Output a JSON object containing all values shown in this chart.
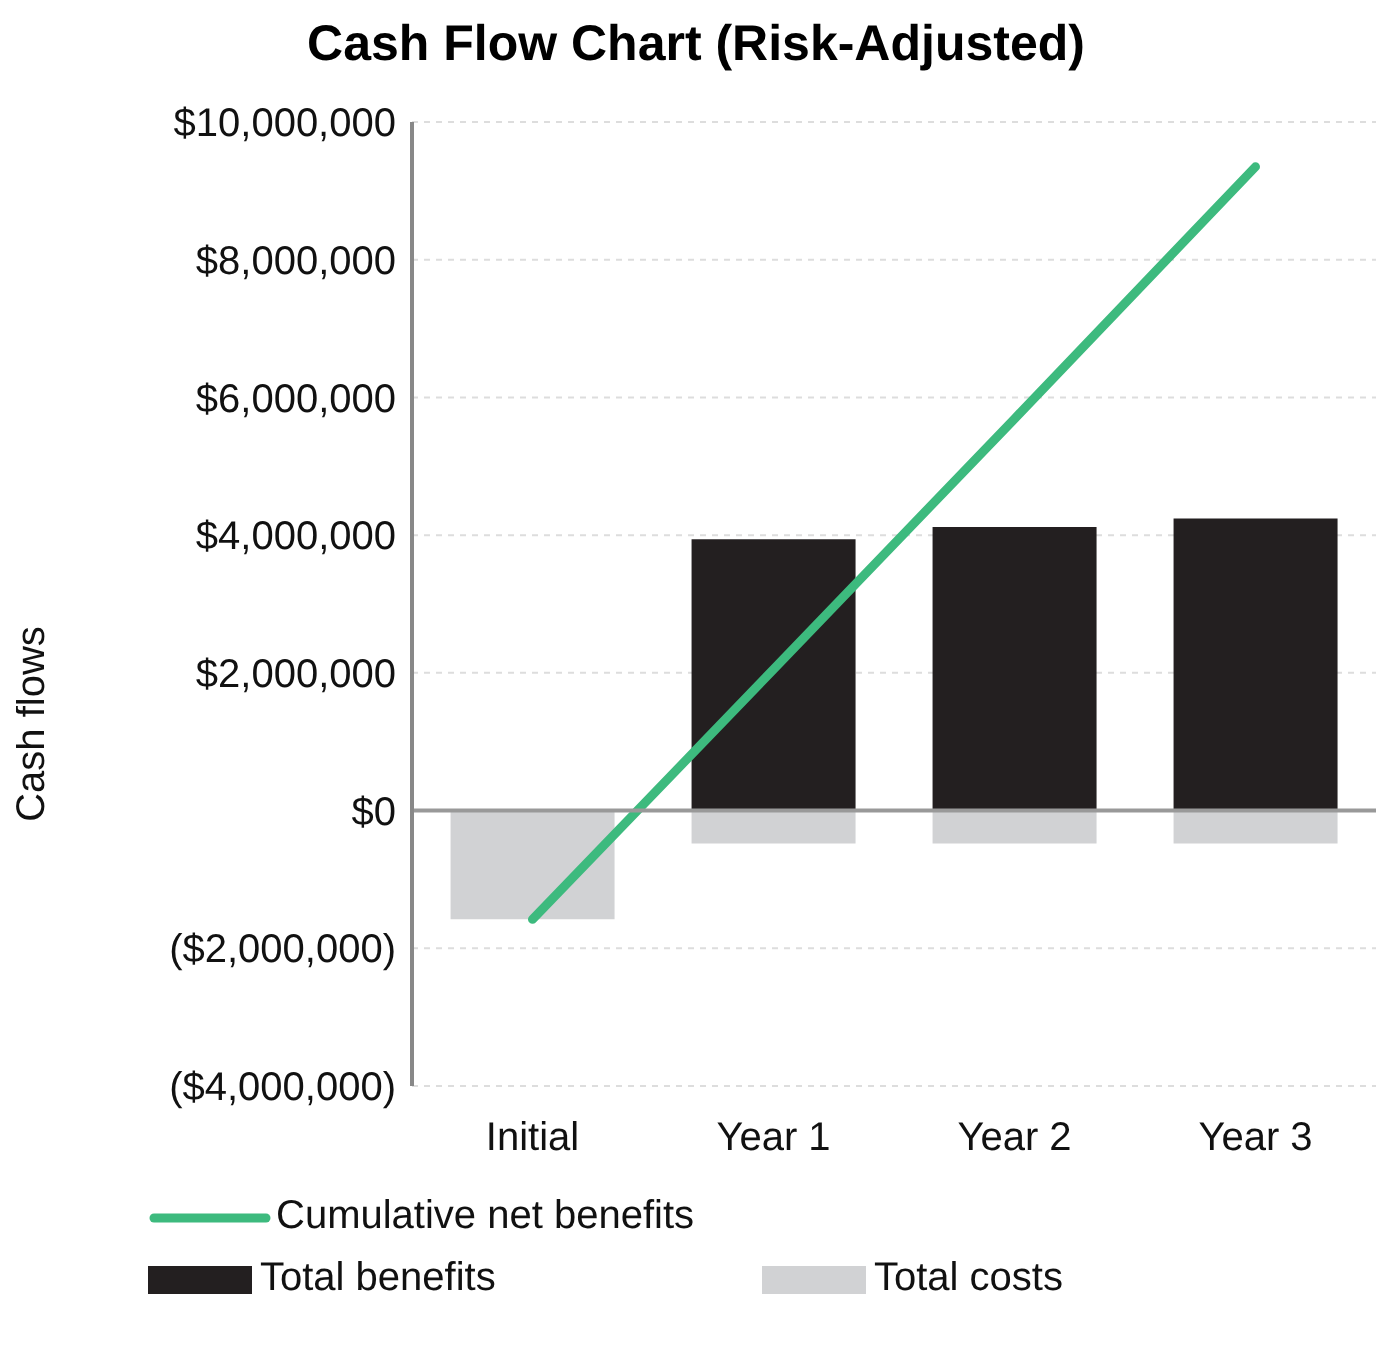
{
  "chart_data": {
    "type": "bar",
    "title": "Cash Flow Chart (Risk-Adjusted)",
    "ylabel": "Cash flows",
    "categories": [
      "Initial",
      "Year 1",
      "Year 2",
      "Year 3"
    ],
    "stacked": true,
    "series": [
      {
        "name": "Total costs",
        "color": "#d1d2d4",
        "values": [
          -1580000,
          -480000,
          -480000,
          -480000
        ]
      },
      {
        "name": "Total benefits",
        "color": "#231f20",
        "values": [
          0,
          3940000,
          4120000,
          4240000
        ]
      },
      {
        "name": "Cumulative net benefits",
        "type": "line",
        "color": "#3dba7e",
        "values": [
          -1580000,
          2050000,
          5690000,
          9350000
        ]
      }
    ],
    "ylim": [
      -4000000,
      10000000
    ],
    "yticks": [
      {
        "value": -4000000,
        "label": "($4,000,000)"
      },
      {
        "value": -2000000,
        "label": "($2,000,000)"
      },
      {
        "value": 0,
        "label": "$0"
      },
      {
        "value": 2000000,
        "label": "$2,000,000"
      },
      {
        "value": 4000000,
        "label": "$4,000,000"
      },
      {
        "value": 6000000,
        "label": "$6,000,000"
      },
      {
        "value": 8000000,
        "label": "$8,000,000"
      },
      {
        "value": 10000000,
        "label": "$10,000,000"
      }
    ],
    "ref_lines": [
      {
        "axis": "y",
        "value": 0,
        "color": "#999999"
      }
    ],
    "grid": "y",
    "legend": "bottom",
    "marker": "none",
    "line_style": "solid"
  }
}
